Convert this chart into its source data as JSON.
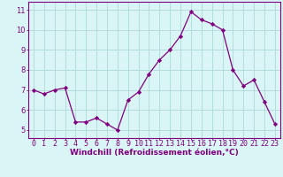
{
  "x": [
    0,
    1,
    2,
    3,
    4,
    5,
    6,
    7,
    8,
    9,
    10,
    11,
    12,
    13,
    14,
    15,
    16,
    17,
    18,
    19,
    20,
    21,
    22,
    23
  ],
  "y": [
    7.0,
    6.8,
    7.0,
    7.1,
    5.4,
    5.4,
    5.6,
    5.3,
    5.0,
    6.5,
    6.9,
    7.8,
    8.5,
    9.0,
    9.7,
    10.9,
    10.5,
    10.3,
    10.0,
    8.0,
    7.2,
    7.5,
    6.4,
    5.3
  ],
  "line_color": "#800080",
  "marker": "D",
  "marker_size": 2.2,
  "bg_color": "#d9f5f5",
  "grid_color": "#b0d8d8",
  "xlabel": "Windchill (Refroidissement éolien,°C)",
  "xlabel_fontsize": 6.5,
  "ylabel_ticks": [
    5,
    6,
    7,
    8,
    9,
    10,
    11
  ],
  "xlim": [
    -0.5,
    23.5
  ],
  "ylim": [
    4.6,
    11.4
  ],
  "tick_fontsize": 6.0,
  "axis_color": "#800080",
  "label_color": "#800080",
  "line_width": 0.9
}
